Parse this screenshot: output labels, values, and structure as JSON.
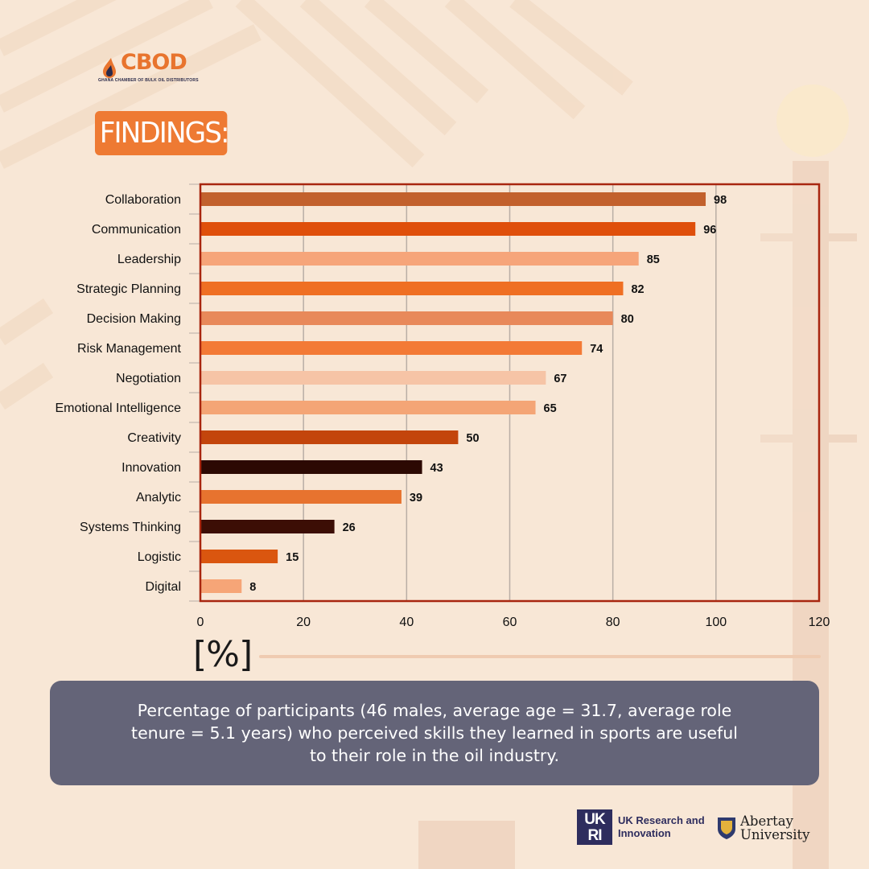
{
  "logo": {
    "name": "CBOD",
    "subtitle": "GHANA CHAMBER OF BULK OIL DISTRIBUTORS"
  },
  "heading": "FINDINGS:",
  "chart_data": {
    "type": "bar",
    "orientation": "horizontal",
    "categories": [
      "Collaboration",
      "Communication",
      "Leadership",
      "Strategic Planning",
      "Decision Making",
      "Risk Management",
      "Negotiation",
      "Emotional Intelligence",
      "Creativity",
      "Innovation",
      "Analytic",
      "Systems Thinking",
      "Logistic",
      "Digital"
    ],
    "values": [
      98,
      96,
      85,
      82,
      80,
      74,
      67,
      65,
      50,
      43,
      39,
      26,
      15,
      8
    ],
    "colors": [
      "#c2612d",
      "#df4f0b",
      "#f6a57a",
      "#ef6f23",
      "#e8895a",
      "#f37a36",
      "#f6c4a6",
      "#f4a576",
      "#c3450c",
      "#2c0903",
      "#e7732f",
      "#3c0e05",
      "#da560f",
      "#f6a577"
    ],
    "xlim": [
      0,
      120
    ],
    "xticks": [
      0,
      20,
      40,
      60,
      80,
      100,
      120
    ],
    "grid": true,
    "xlabel": "[%]",
    "frame_color": "#a8260f",
    "value_labels": true
  },
  "caption": "Percentage of participants (46 males, average age = 31.7, average role tenure = 5.1 years) who perceived skills they learned in sports are useful to their role in the oil industry.",
  "partners": {
    "ukri_mark": "UK RI",
    "ukri": "UK Research and Innovation",
    "abertay": "Abertay University"
  }
}
